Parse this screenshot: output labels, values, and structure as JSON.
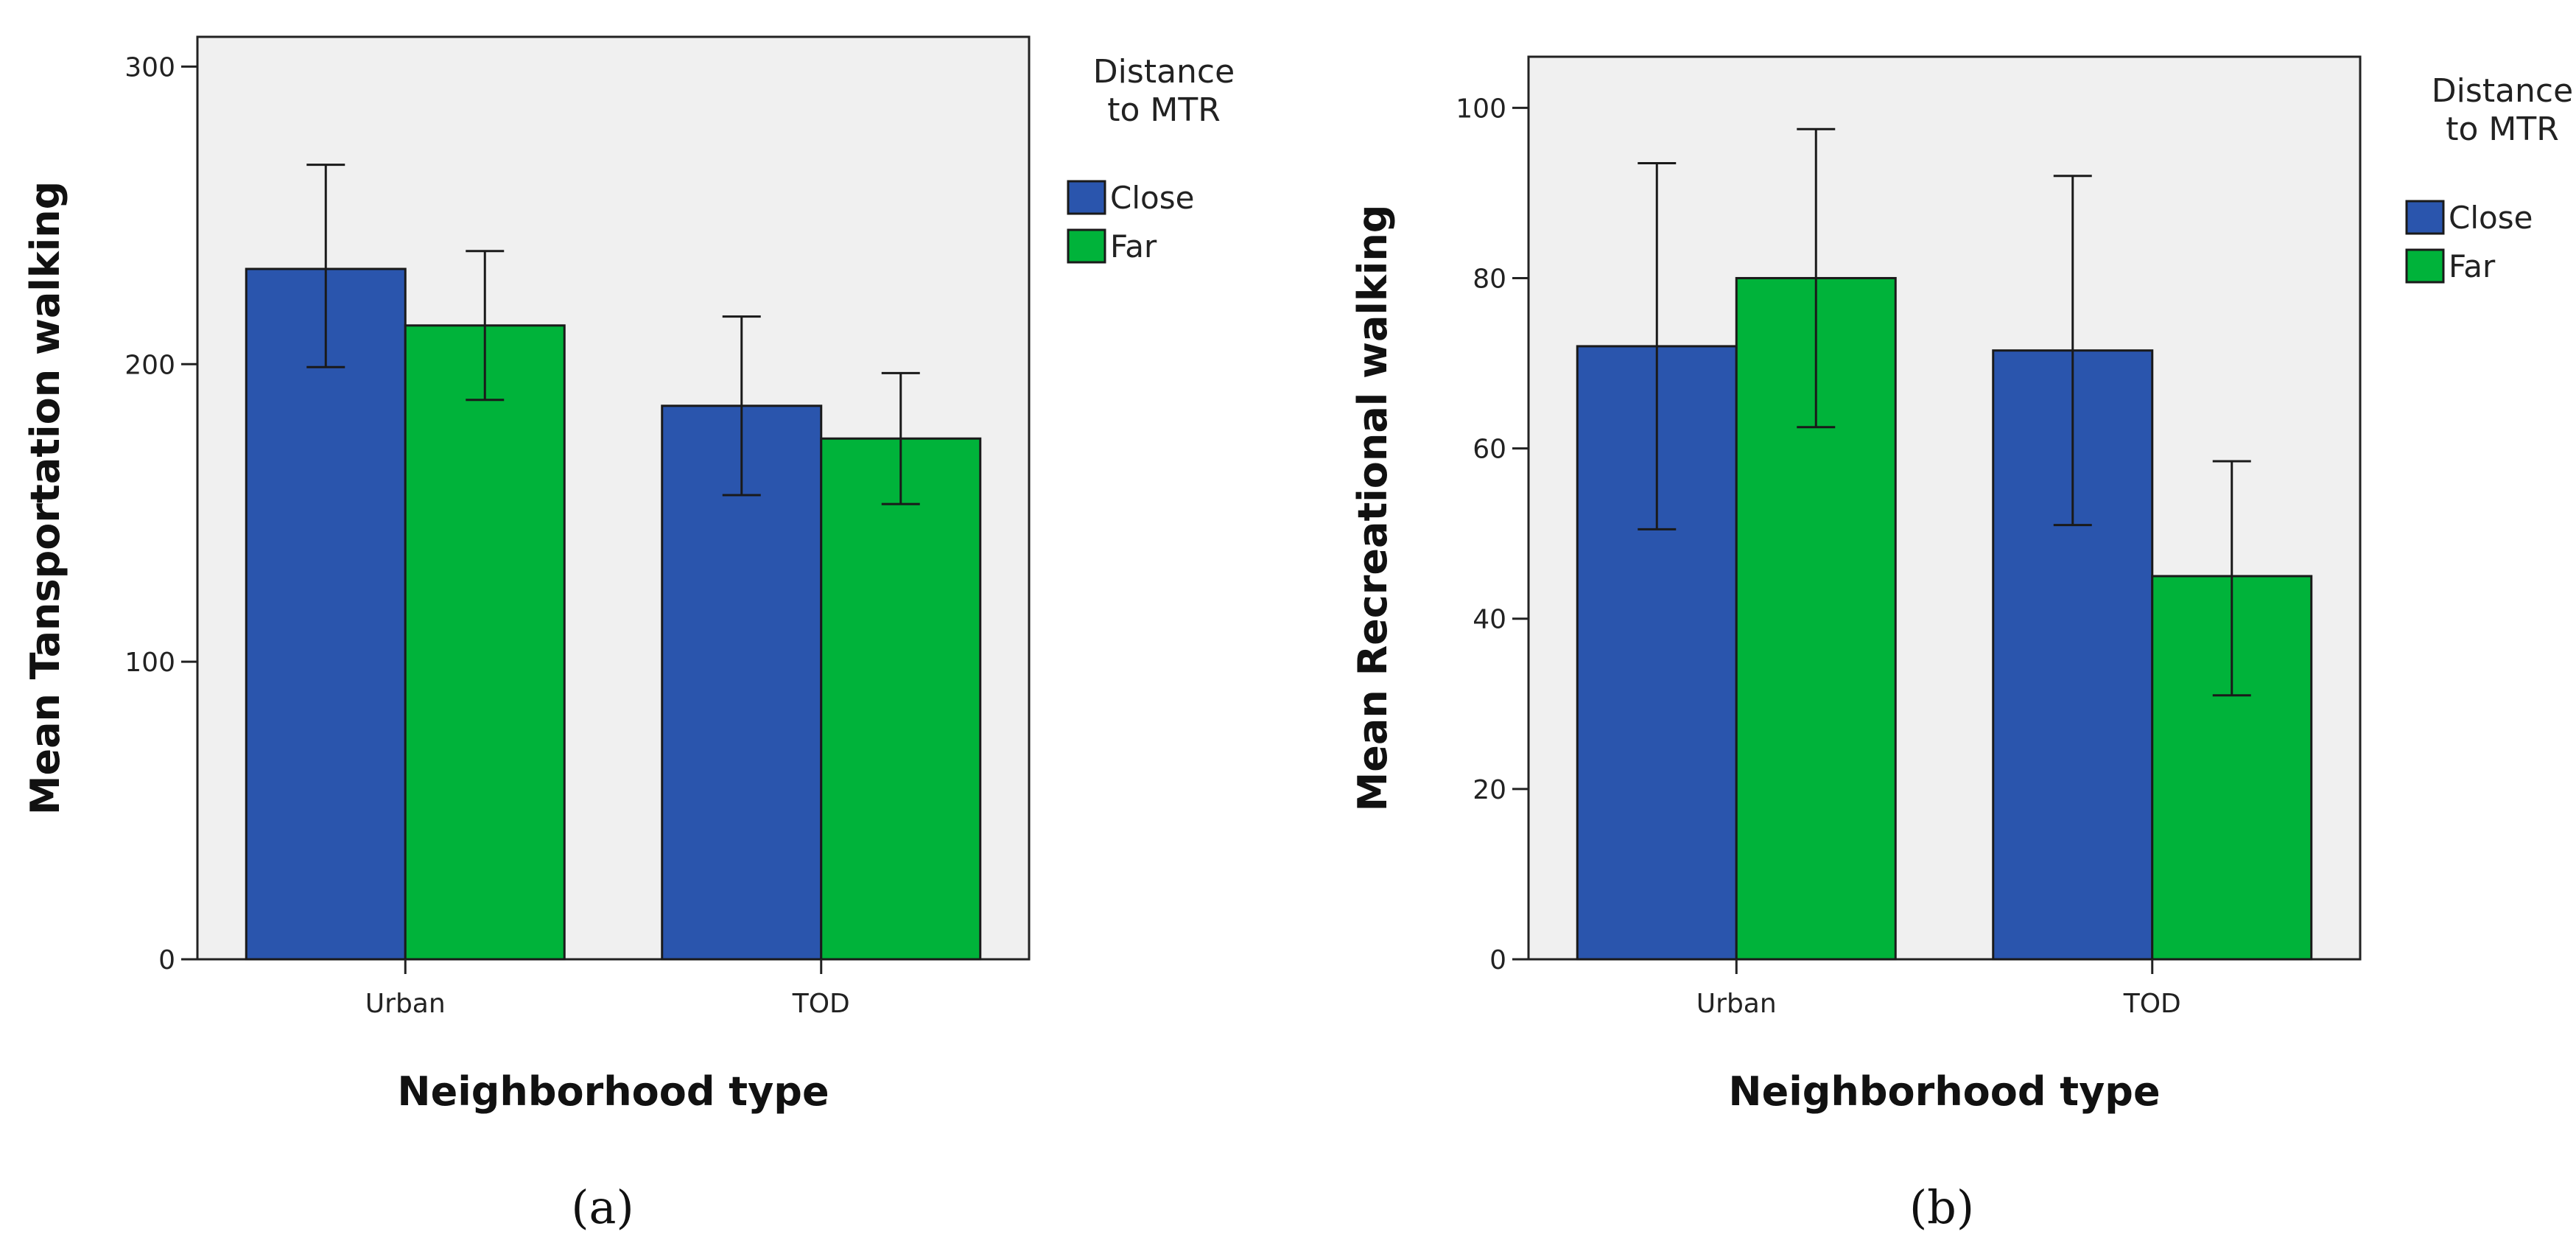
{
  "colors": {
    "close": "#2a55ad",
    "far": "#00b33a",
    "plot_bg": "#f0f0f0",
    "axis": "#222222",
    "bar_edge": "#1a1a1a"
  },
  "chart_data": [
    {
      "type": "bar",
      "panel_label": "(a)",
      "title": "",
      "xlabel": "Neighborhood type",
      "ylabel": "Mean Tansportation walking",
      "categories": [
        "Urban",
        "TOD"
      ],
      "ylim": [
        0,
        310
      ],
      "yticks": [
        0,
        100,
        200,
        300
      ],
      "legend_title": [
        "Distance",
        "to MTR"
      ],
      "legend_position": "right",
      "series": [
        {
          "name": "Close",
          "color_key": "close",
          "values": [
            232,
            186
          ],
          "err_low": [
            199,
            156
          ],
          "err_high": [
            267,
            216
          ]
        },
        {
          "name": "Far",
          "color_key": "far",
          "values": [
            213,
            175
          ],
          "err_low": [
            188,
            153
          ],
          "err_high": [
            238,
            197
          ]
        }
      ]
    },
    {
      "type": "bar",
      "panel_label": "(b)",
      "title": "",
      "xlabel": "Neighborhood type",
      "ylabel": "Mean Recreational walking",
      "categories": [
        "Urban",
        "TOD"
      ],
      "ylim": [
        0,
        106
      ],
      "yticks": [
        0,
        20,
        40,
        60,
        80,
        100
      ],
      "legend_title": [
        "Distance",
        "to MTR"
      ],
      "legend_position": "right",
      "series": [
        {
          "name": "Close",
          "color_key": "close",
          "values": [
            72,
            71.5
          ],
          "err_low": [
            50.5,
            51
          ],
          "err_high": [
            93.5,
            92
          ]
        },
        {
          "name": "Far",
          "color_key": "far",
          "values": [
            80,
            45
          ],
          "err_low": [
            62.5,
            31
          ],
          "err_high": [
            97.5,
            58.5
          ]
        }
      ]
    }
  ]
}
